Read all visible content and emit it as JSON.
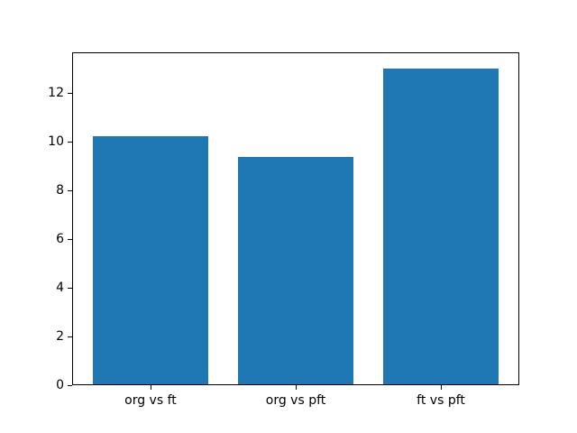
{
  "chart_data": {
    "type": "bar",
    "categories": [
      "org vs ft",
      "org vs pft",
      "ft vs pft"
    ],
    "values": [
      10.2,
      9.35,
      13.0
    ],
    "title": "",
    "xlabel": "",
    "ylabel": "",
    "ylim": [
      0,
      13.65
    ],
    "xlim": [
      -0.54,
      2.54
    ],
    "yticks": [
      0,
      2,
      4,
      6,
      8,
      10,
      12
    ],
    "bar_width": 0.8,
    "bar_color": "#1f77b4",
    "grid": false,
    "legend": null,
    "background_color": "#ffffff",
    "spine_color": "#000000"
  }
}
